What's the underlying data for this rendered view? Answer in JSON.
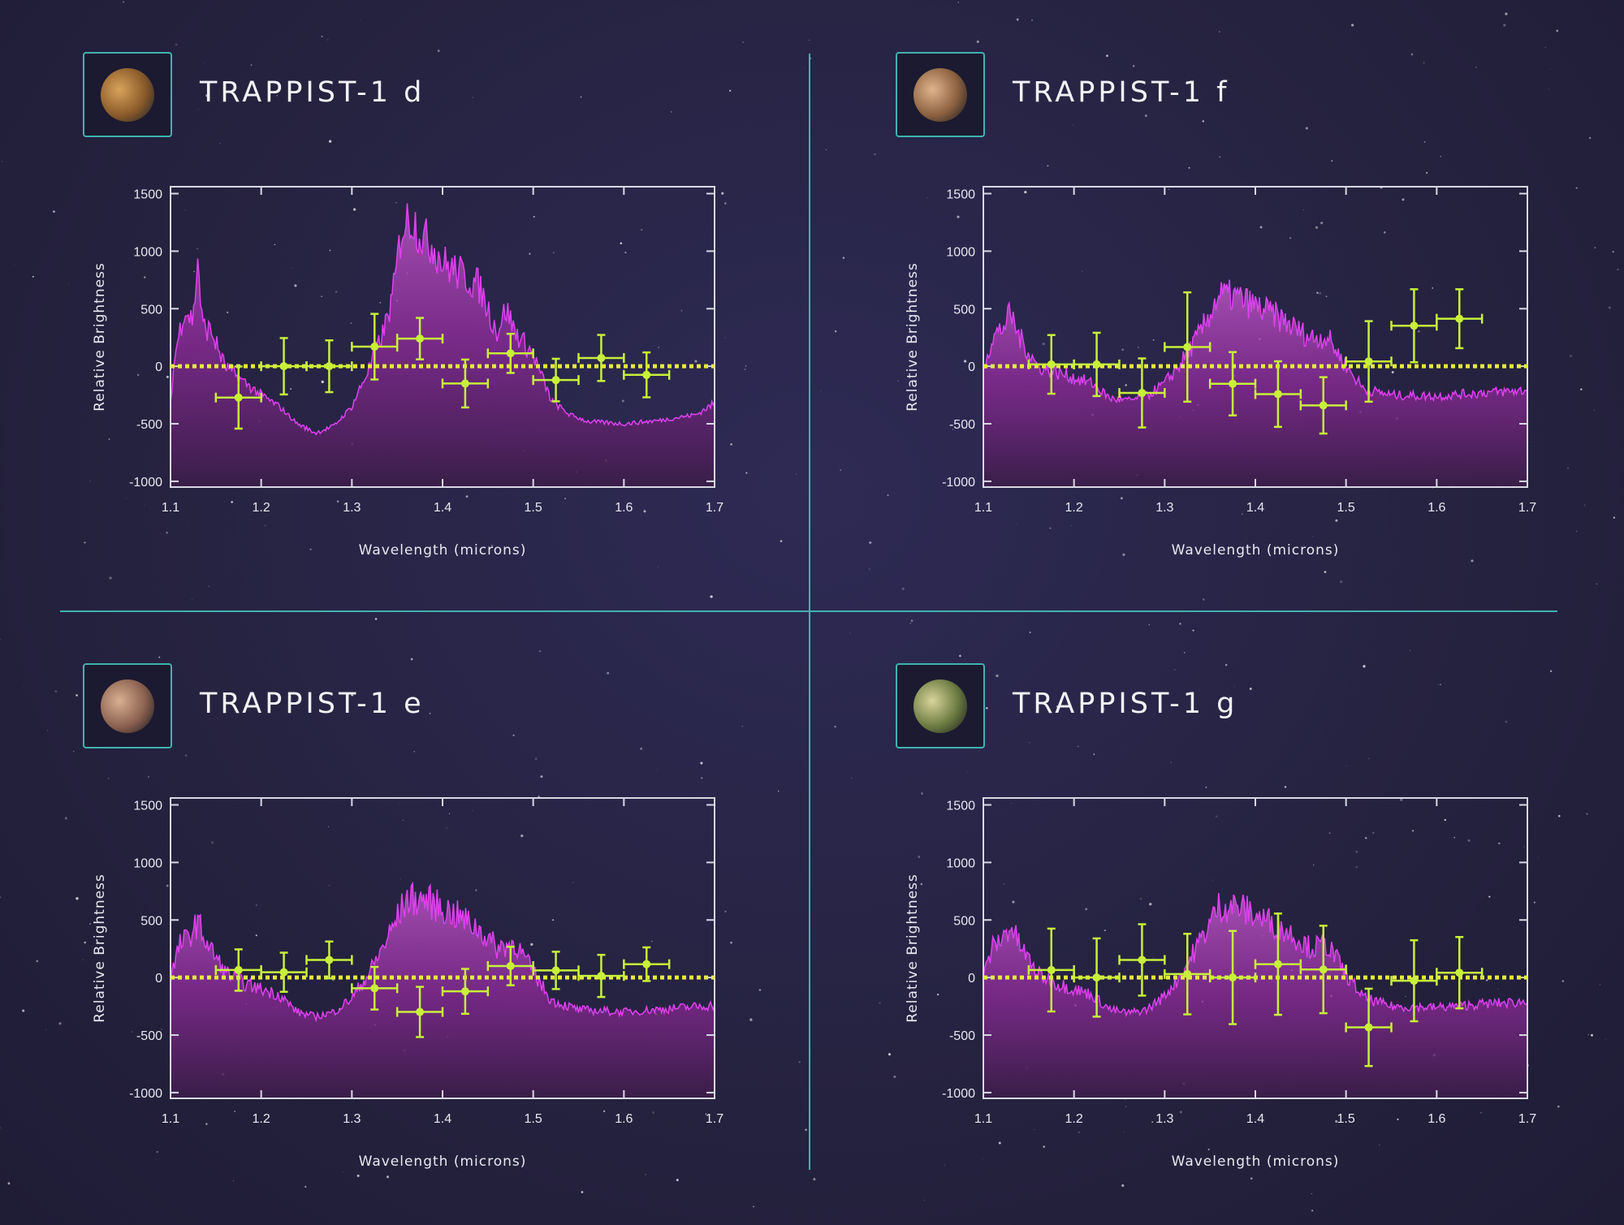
{
  "colors": {
    "divider": "#3fb3b0",
    "model_line": "#e040f0",
    "model_fill_top": "#b455c0",
    "model_fill_bottom": "#3a1d48",
    "data_points": "#c8f03a",
    "zero_line": "#e4ec3a",
    "axes": "#d8d8e4"
  },
  "chart_data": [
    {
      "title": "TRAPPIST-1 d",
      "planet_icon": "planet-d-icon",
      "planet_colors": [
        "#d7a35a",
        "#8a5a2a",
        "#2a2a2a"
      ],
      "type": "line",
      "xlabel": "Wavelength (microns)",
      "ylabel": "Relative Brightness",
      "xlim": [
        1.1,
        1.7
      ],
      "ylim": [
        -1050,
        1560
      ],
      "xticks": [
        "1.1",
        "1.2",
        "1.3",
        "1.4",
        "1.5",
        "1.6",
        "1.7"
      ],
      "yticks": [
        "1500",
        "1000",
        "500",
        "0",
        "-500",
        "-1000"
      ],
      "reference_line": 0,
      "model": {
        "x": [
          1.1,
          1.105,
          1.115,
          1.125,
          1.13,
          1.135,
          1.145,
          1.16,
          1.175,
          1.2,
          1.22,
          1.24,
          1.26,
          1.28,
          1.3,
          1.32,
          1.335,
          1.345,
          1.355,
          1.365,
          1.38,
          1.39,
          1.4,
          1.42,
          1.44,
          1.46,
          1.47,
          1.48,
          1.5,
          1.51,
          1.52,
          1.54,
          1.56,
          1.6,
          1.64,
          1.68,
          1.7
        ],
        "y": [
          -300,
          100,
          500,
          400,
          950,
          350,
          300,
          0,
          -100,
          -250,
          -350,
          -500,
          -580,
          -520,
          -350,
          0,
          300,
          600,
          1200,
          1300,
          1100,
          1050,
          900,
          800,
          700,
          300,
          500,
          300,
          100,
          -100,
          -300,
          -420,
          -480,
          -500,
          -470,
          -420,
          -320
        ]
      },
      "points": {
        "x": [
          1.175,
          1.225,
          1.275,
          1.325,
          1.375,
          1.425,
          1.475,
          1.525,
          1.575,
          1.625
        ],
        "y": [
          -272,
          0,
          0,
          170,
          240,
          -150,
          112,
          -120,
          72,
          -75
        ],
        "yerr": [
          270,
          245,
          225,
          285,
          180,
          208,
          170,
          185,
          200,
          195
        ],
        "xerr": 0.025
      }
    },
    {
      "title": "TRAPPIST-1 f",
      "planet_icon": "planet-f-icon",
      "planet_colors": [
        "#e0b48a",
        "#8a6040",
        "#2a2424"
      ],
      "type": "line",
      "xlabel": "Wavelength (microns)",
      "ylabel": "Relative Brightness",
      "xlim": [
        1.1,
        1.7
      ],
      "ylim": [
        -1050,
        1560
      ],
      "xticks": [
        "1.1",
        "1.2",
        "1.3",
        "1.4",
        "1.5",
        "1.6",
        "1.7"
      ],
      "yticks": [
        "1500",
        "1000",
        "500",
        "0",
        "-500",
        "-1000"
      ],
      "reference_line": 0,
      "model": {
        "x": [
          1.1,
          1.11,
          1.12,
          1.13,
          1.14,
          1.16,
          1.18,
          1.2,
          1.22,
          1.24,
          1.26,
          1.28,
          1.3,
          1.32,
          1.34,
          1.36,
          1.38,
          1.4,
          1.42,
          1.44,
          1.46,
          1.48,
          1.5,
          1.52,
          1.55,
          1.6,
          1.65,
          1.7
        ],
        "y": [
          0,
          250,
          320,
          450,
          250,
          0,
          -50,
          -100,
          -150,
          -280,
          -300,
          -260,
          -150,
          50,
          300,
          620,
          600,
          520,
          450,
          350,
          250,
          250,
          0,
          -200,
          -250,
          -260,
          -230,
          -210
        ]
      },
      "points": {
        "x": [
          1.175,
          1.225,
          1.275,
          1.325,
          1.375,
          1.425,
          1.475,
          1.525,
          1.575,
          1.625
        ],
        "y": [
          16,
          16,
          -232,
          167,
          -152,
          -242,
          -340,
          42,
          352,
          413
        ],
        "yerr": [
          255,
          275,
          300,
          475,
          275,
          285,
          245,
          350,
          317,
          256
        ],
        "xerr": 0.025
      }
    },
    {
      "title": "TRAPPIST-1 e",
      "planet_icon": "planet-e-icon",
      "planet_colors": [
        "#d8b090",
        "#8a6050",
        "#2a2424"
      ],
      "type": "line",
      "xlabel": "Wavelength (microns)",
      "ylabel": "Relative Brightness",
      "xlim": [
        1.1,
        1.7
      ],
      "ylim": [
        -1050,
        1560
      ],
      "xticks": [
        "1.1",
        "1.2",
        "1.3",
        "1.4",
        "1.5",
        "1.6",
        "1.7"
      ],
      "yticks": [
        "1500",
        "1000",
        "500",
        "0",
        "-500",
        "-1000"
      ],
      "reference_line": 0,
      "model": {
        "x": [
          1.1,
          1.11,
          1.12,
          1.13,
          1.14,
          1.16,
          1.18,
          1.2,
          1.22,
          1.24,
          1.26,
          1.28,
          1.3,
          1.32,
          1.34,
          1.36,
          1.38,
          1.4,
          1.42,
          1.44,
          1.46,
          1.48,
          1.5,
          1.52,
          1.55,
          1.6,
          1.65,
          1.7
        ],
        "y": [
          0,
          280,
          350,
          480,
          300,
          50,
          -50,
          -100,
          -150,
          -300,
          -340,
          -300,
          -180,
          50,
          350,
          680,
          680,
          600,
          520,
          420,
          260,
          300,
          50,
          -200,
          -280,
          -300,
          -270,
          -240
        ]
      },
      "points": {
        "x": [
          1.175,
          1.225,
          1.275,
          1.325,
          1.375,
          1.425,
          1.475,
          1.525,
          1.575,
          1.625
        ],
        "y": [
          65,
          46,
          153,
          -93,
          -299,
          -120,
          100,
          62,
          14,
          116
        ],
        "yerr": [
          180,
          170,
          160,
          185,
          218,
          195,
          167,
          162,
          183,
          146
        ],
        "xerr": 0.025
      }
    },
    {
      "title": "TRAPPIST-1 g",
      "planet_icon": "planet-g-icon",
      "planet_colors": [
        "#d8d49a",
        "#6a7a40",
        "#2a2a24"
      ],
      "type": "line",
      "xlabel": "Wavelength (microns)",
      "ylabel": "Relative Brightness",
      "xlim": [
        1.1,
        1.7
      ],
      "ylim": [
        -1050,
        1560
      ],
      "xticks": [
        "1.1",
        "1.2",
        "1.3",
        "1.4",
        "1.5",
        "1.6",
        "1.7"
      ],
      "yticks": [
        "1500",
        "1000",
        "500",
        "0",
        "-500",
        "-1000"
      ],
      "reference_line": 0,
      "model": {
        "x": [
          1.1,
          1.11,
          1.12,
          1.13,
          1.14,
          1.16,
          1.18,
          1.2,
          1.22,
          1.24,
          1.26,
          1.28,
          1.3,
          1.32,
          1.34,
          1.36,
          1.38,
          1.4,
          1.42,
          1.44,
          1.46,
          1.48,
          1.5,
          1.52,
          1.55,
          1.6,
          1.65,
          1.7
        ],
        "y": [
          0,
          260,
          330,
          450,
          280,
          30,
          -50,
          -100,
          -150,
          -280,
          -310,
          -280,
          -160,
          50,
          330,
          620,
          620,
          540,
          470,
          380,
          260,
          280,
          30,
          -180,
          -250,
          -260,
          -230,
          -210
        ]
      },
      "points": {
        "x": [
          1.175,
          1.225,
          1.275,
          1.325,
          1.375,
          1.425,
          1.475,
          1.525,
          1.575,
          1.625
        ],
        "y": [
          65,
          0,
          153,
          30,
          0,
          116,
          70,
          -433,
          -28,
          42
        ],
        "yerr": [
          360,
          340,
          310,
          350,
          405,
          440,
          380,
          336,
          352,
          310
        ],
        "xerr": 0.025
      }
    }
  ]
}
